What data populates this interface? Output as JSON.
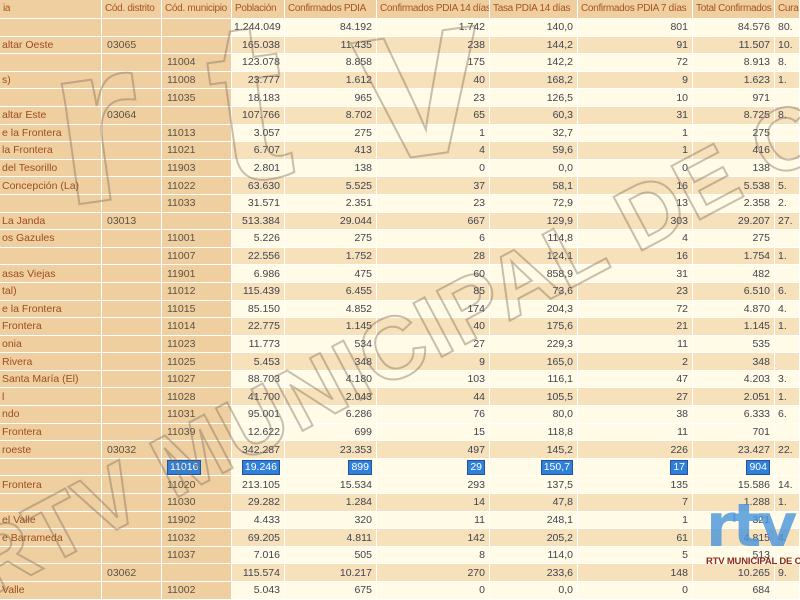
{
  "table": {
    "columns": [
      {
        "key": "name",
        "label": "ia"
      },
      {
        "key": "distrito",
        "label": "Cód. distrito"
      },
      {
        "key": "municipio",
        "label": "Cód. municipio"
      },
      {
        "key": "poblacion",
        "label": "Población"
      },
      {
        "key": "conf_pdia",
        "label": "Confirmados PDIA"
      },
      {
        "key": "conf14",
        "label": "Confirmados PDIA 14 días"
      },
      {
        "key": "tasa14",
        "label": "Tasa PDIA 14 días"
      },
      {
        "key": "conf7",
        "label": "Confirmados PDIA 7 días"
      },
      {
        "key": "total",
        "label": "Total Confirmados"
      },
      {
        "key": "curados",
        "label": "Cura"
      }
    ],
    "rows": [
      {
        "name": "",
        "distrito": "",
        "municipio": "",
        "poblacion": "1.244.049",
        "conf_pdia": "84.192",
        "conf14": "1.742",
        "tasa14": "140,0",
        "conf7": "801",
        "total": "84.576",
        "curados": "80."
      },
      {
        "name": "altar Oeste",
        "distrito": "03065",
        "municipio": "",
        "poblacion": "165.038",
        "conf_pdia": "11.435",
        "conf14": "238",
        "tasa14": "144,2",
        "conf7": "91",
        "total": "11.507",
        "curados": "10."
      },
      {
        "name": "",
        "distrito": "",
        "municipio": "11004",
        "poblacion": "123.078",
        "conf_pdia": "8.858",
        "conf14": "175",
        "tasa14": "142,2",
        "conf7": "72",
        "total": "8.913",
        "curados": "8."
      },
      {
        "name": "s)",
        "distrito": "",
        "municipio": "11008",
        "poblacion": "23.777",
        "conf_pdia": "1.612",
        "conf14": "40",
        "tasa14": "168,2",
        "conf7": "9",
        "total": "1.623",
        "curados": "1."
      },
      {
        "name": "",
        "distrito": "",
        "municipio": "11035",
        "poblacion": "18.183",
        "conf_pdia": "965",
        "conf14": "23",
        "tasa14": "126,5",
        "conf7": "10",
        "total": "971",
        "curados": ""
      },
      {
        "name": "altar Este",
        "distrito": "03064",
        "municipio": "",
        "poblacion": "107.766",
        "conf_pdia": "8.702",
        "conf14": "65",
        "tasa14": "60,3",
        "conf7": "31",
        "total": "8.725",
        "curados": "8."
      },
      {
        "name": "e la Frontera",
        "distrito": "",
        "municipio": "11013",
        "poblacion": "3.057",
        "conf_pdia": "275",
        "conf14": "1",
        "tasa14": "32,7",
        "conf7": "1",
        "total": "275",
        "curados": ""
      },
      {
        "name": "la Frontera",
        "distrito": "",
        "municipio": "11021",
        "poblacion": "6.707",
        "conf_pdia": "413",
        "conf14": "4",
        "tasa14": "59,6",
        "conf7": "1",
        "total": "416",
        "curados": ""
      },
      {
        "name": "del Tesorillo",
        "distrito": "",
        "municipio": "11903",
        "poblacion": "2.801",
        "conf_pdia": "138",
        "conf14": "0",
        "tasa14": "0,0",
        "conf7": "0",
        "total": "138",
        "curados": ""
      },
      {
        "name": "Concepción (La)",
        "distrito": "",
        "municipio": "11022",
        "poblacion": "63.630",
        "conf_pdia": "5.525",
        "conf14": "37",
        "tasa14": "58,1",
        "conf7": "16",
        "total": "5.538",
        "curados": "5."
      },
      {
        "name": "",
        "distrito": "",
        "municipio": "11033",
        "poblacion": "31.571",
        "conf_pdia": "2.351",
        "conf14": "23",
        "tasa14": "72,9",
        "conf7": "13",
        "total": "2.358",
        "curados": "2."
      },
      {
        "name": "La Janda",
        "distrito": "03013",
        "municipio": "",
        "poblacion": "513.384",
        "conf_pdia": "29.044",
        "conf14": "667",
        "tasa14": "129,9",
        "conf7": "303",
        "total": "29.207",
        "curados": "27."
      },
      {
        "name": "os Gazules",
        "distrito": "",
        "municipio": "11001",
        "poblacion": "5.226",
        "conf_pdia": "275",
        "conf14": "6",
        "tasa14": "114,8",
        "conf7": "4",
        "total": "275",
        "curados": ""
      },
      {
        "name": "",
        "distrito": "",
        "municipio": "11007",
        "poblacion": "22.556",
        "conf_pdia": "1.752",
        "conf14": "28",
        "tasa14": "124,1",
        "conf7": "16",
        "total": "1.754",
        "curados": "1."
      },
      {
        "name": "asas Viejas",
        "distrito": "",
        "municipio": "11901",
        "poblacion": "6.986",
        "conf_pdia": "475",
        "conf14": "60",
        "tasa14": "858,9",
        "conf7": "31",
        "total": "482",
        "curados": ""
      },
      {
        "name": "tal)",
        "distrito": "",
        "municipio": "11012",
        "poblacion": "115.439",
        "conf_pdia": "6.455",
        "conf14": "85",
        "tasa14": "73,6",
        "conf7": "23",
        "total": "6.510",
        "curados": "6."
      },
      {
        "name": "e la Frontera",
        "distrito": "",
        "municipio": "11015",
        "poblacion": "85.150",
        "conf_pdia": "4.852",
        "conf14": "174",
        "tasa14": "204,3",
        "conf7": "72",
        "total": "4.870",
        "curados": "4."
      },
      {
        "name": "Frontera",
        "distrito": "",
        "municipio": "11014",
        "poblacion": "22.775",
        "conf_pdia": "1.145",
        "conf14": "40",
        "tasa14": "175,6",
        "conf7": "21",
        "total": "1.145",
        "curados": "1."
      },
      {
        "name": "onia",
        "distrito": "",
        "municipio": "11023",
        "poblacion": "11.773",
        "conf_pdia": "534",
        "conf14": "27",
        "tasa14": "229,3",
        "conf7": "11",
        "total": "535",
        "curados": ""
      },
      {
        "name": "Rivera",
        "distrito": "",
        "municipio": "11025",
        "poblacion": "5.453",
        "conf_pdia": "348",
        "conf14": "9",
        "tasa14": "165,0",
        "conf7": "2",
        "total": "348",
        "curados": ""
      },
      {
        "name": "Santa María (El)",
        "distrito": "",
        "municipio": "11027",
        "poblacion": "88.703",
        "conf_pdia": "4.180",
        "conf14": "103",
        "tasa14": "116,1",
        "conf7": "47",
        "total": "4.203",
        "curados": "3."
      },
      {
        "name": "l",
        "distrito": "",
        "municipio": "11028",
        "poblacion": "41.700",
        "conf_pdia": "2.043",
        "conf14": "44",
        "tasa14": "105,5",
        "conf7": "27",
        "total": "2.051",
        "curados": "1."
      },
      {
        "name": "ndo",
        "distrito": "",
        "municipio": "11031",
        "poblacion": "95.001",
        "conf_pdia": "6.286",
        "conf14": "76",
        "tasa14": "80,0",
        "conf7": "38",
        "total": "6.333",
        "curados": "6."
      },
      {
        "name": "Frontera",
        "distrito": "",
        "municipio": "11039",
        "poblacion": "12.622",
        "conf_pdia": "699",
        "conf14": "15",
        "tasa14": "118,8",
        "conf7": "11",
        "total": "701",
        "curados": ""
      },
      {
        "name": "roeste",
        "distrito": "03032",
        "municipio": "",
        "poblacion": "342.287",
        "conf_pdia": "23.353",
        "conf14": "497",
        "tasa14": "145,2",
        "conf7": "226",
        "total": "23.427",
        "curados": "22."
      },
      {
        "name": "",
        "distrito": "",
        "municipio": "11016",
        "poblacion": "19.246",
        "conf_pdia": "899",
        "conf14": "29",
        "tasa14": "150,7",
        "conf7": "17",
        "total": "904",
        "curados": "",
        "selected": true
      },
      {
        "name": "Frontera",
        "distrito": "",
        "municipio": "11020",
        "poblacion": "213.105",
        "conf_pdia": "15.534",
        "conf14": "293",
        "tasa14": "137,5",
        "conf7": "135",
        "total": "15.586",
        "curados": "14."
      },
      {
        "name": "",
        "distrito": "",
        "municipio": "11030",
        "poblacion": "29.282",
        "conf_pdia": "1.284",
        "conf14": "14",
        "tasa14": "47,8",
        "conf7": "7",
        "total": "1.288",
        "curados": "1."
      },
      {
        "name": "el Valle",
        "distrito": "",
        "municipio": "11902",
        "poblacion": "4.433",
        "conf_pdia": "320",
        "conf14": "11",
        "tasa14": "248,1",
        "conf7": "1",
        "total": "321",
        "curados": ""
      },
      {
        "name": "e Barrameda",
        "distrito": "",
        "municipio": "11032",
        "poblacion": "69.205",
        "conf_pdia": "4.811",
        "conf14": "142",
        "tasa14": "205,2",
        "conf7": "61",
        "total": "4.815",
        "curados": "4."
      },
      {
        "name": "",
        "distrito": "",
        "municipio": "11037",
        "poblacion": "7.016",
        "conf_pdia": "505",
        "conf14": "8",
        "tasa14": "114,0",
        "conf7": "5",
        "total": "513",
        "curados": ""
      },
      {
        "name": "",
        "distrito": "03062",
        "municipio": "",
        "poblacion": "115.574",
        "conf_pdia": "10.217",
        "conf14": "270",
        "tasa14": "233,6",
        "conf7": "148",
        "total": "10.265",
        "curados": "9."
      },
      {
        "name": "Valle",
        "distrito": "",
        "municipio": "11002",
        "poblacion": "5.043",
        "conf_pdia": "675",
        "conf14": "0",
        "tasa14": "0,0",
        "conf7": "0",
        "total": "684",
        "curados": ""
      }
    ]
  },
  "watermark": {
    "logo_text": "rtv",
    "diagonal_text": "RTV MUNICIPAL DE CHIPIONA"
  },
  "logo": {
    "mark": "rtv",
    "caption": "RTV MUNICIPAL DE CH"
  },
  "colors": {
    "selection_blue": "#2f80d9",
    "selection_border": "#23519d",
    "logo_blue": "#4a96dd",
    "caption_red": "#8d2a1e",
    "header_text": "#a8531c",
    "row_tan": "#f6e1bb",
    "row_cream": "#fffbe7",
    "panel_tan": "#efcfa0"
  }
}
